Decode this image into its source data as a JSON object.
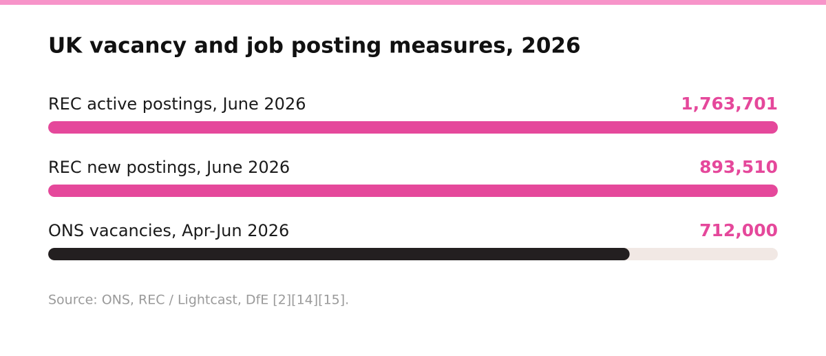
{
  "chart_data": {
    "type": "bar",
    "orientation": "horizontal",
    "title": "UK vacancy and job posting measures, 2026",
    "categories": [
      "REC active postings, June 2026",
      "REC new postings, June 2026",
      "ONS vacancies, Apr-Jun 2026"
    ],
    "values": [
      1763701,
      893510,
      712000
    ],
    "value_labels": [
      "1,763,701",
      "893,510",
      "712,000"
    ],
    "colors": [
      "#e5489b",
      "#e5489b",
      "#231f20"
    ],
    "label_color": "#e5489b",
    "track_color": "#f1e8e4",
    "xlim": [
      0,
      893510
    ],
    "source": "Source: ONS, REC / Lightcast, DfE [2][14][15]."
  }
}
